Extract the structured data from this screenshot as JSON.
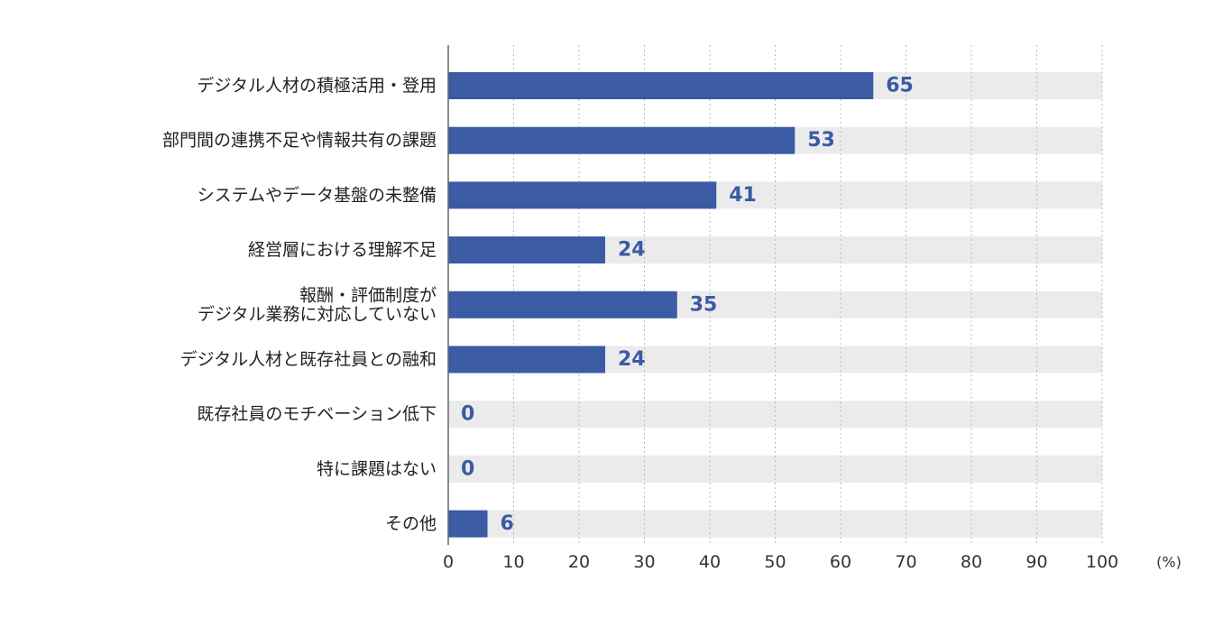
{
  "chart_data": {
    "type": "bar",
    "orientation": "horizontal",
    "categories": [
      [
        "デジタル人材の積極活用・登用"
      ],
      [
        "部門間の連携不足や情報共有の課題"
      ],
      [
        "システムやデータ基盤の未整備"
      ],
      [
        "経営層における理解不足"
      ],
      [
        "報酬・評価制度が",
        "デジタル業務に対応していない"
      ],
      [
        "デジタル人材と既存社員との融和"
      ],
      [
        "既存社員のモチベーション低下"
      ],
      [
        "特に課題はない"
      ],
      [
        "その他"
      ]
    ],
    "values": [
      65,
      53,
      41,
      24,
      35,
      24,
      0,
      0,
      6
    ],
    "value_labels": [
      "65",
      "53",
      "41",
      "24",
      "35",
      "24",
      "0",
      "0",
      "6"
    ],
    "xlim": [
      0,
      100
    ],
    "x_ticks": [
      "0",
      "10",
      "20",
      "30",
      "40",
      "50",
      "60",
      "70",
      "80",
      "90",
      "100"
    ],
    "x_unit": "(%)",
    "grid": "vertical-dotted",
    "colors": {
      "bar": "#3b5ba5",
      "track": "#ebebeb",
      "value_text": "#3a5aa5",
      "grid": "#bbbbbb",
      "axis": "#666666"
    }
  }
}
